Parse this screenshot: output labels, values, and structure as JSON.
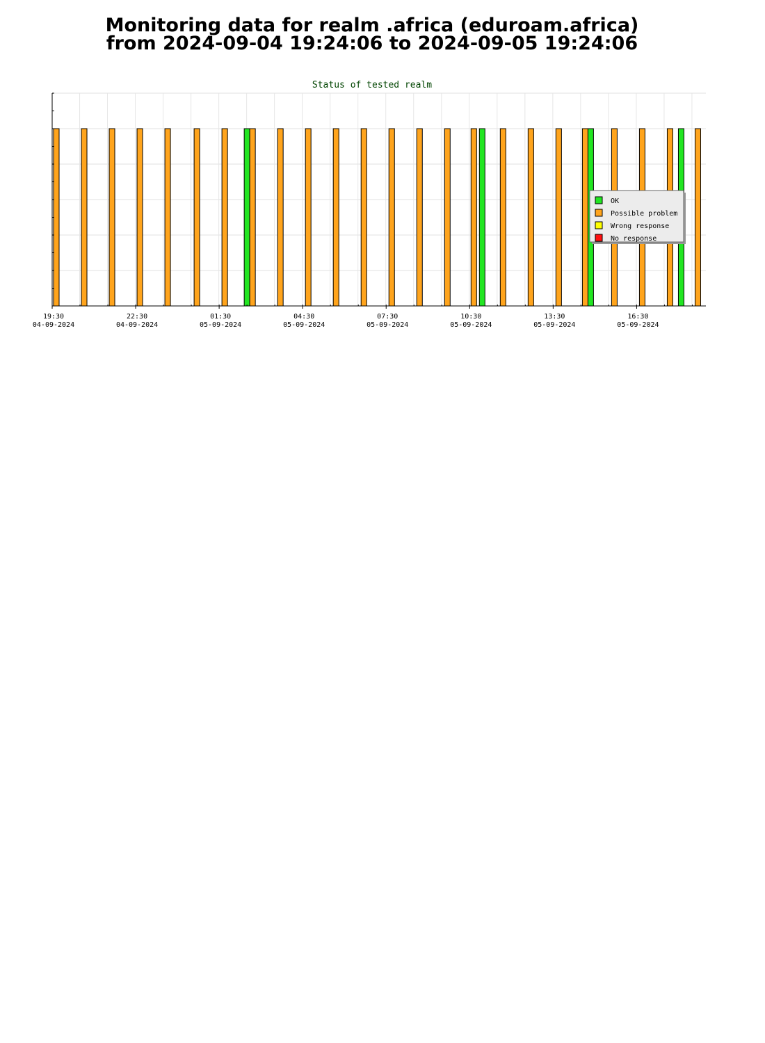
{
  "page": {
    "title_line1": "Monitoring data for realm .africa  (eduroam.africa)",
    "title_line2": "from 2024-09-04 19:24:06 to 2024-09-05 19:24:06"
  },
  "chart_data": {
    "type": "bar",
    "title": "Status of tested realm",
    "xlabel": "",
    "ylabel": "",
    "x_range": [
      "2024-09-04 19:30",
      "2024-09-05 19:24"
    ],
    "x_ticks": [
      {
        "time": "19:30",
        "date": "04-09-2024",
        "hour": 0
      },
      {
        "time": "22:30",
        "date": "04-09-2024",
        "hour": 3
      },
      {
        "time": "01:30",
        "date": "05-09-2024",
        "hour": 6
      },
      {
        "time": "04:30",
        "date": "05-09-2024",
        "hour": 9
      },
      {
        "time": "07:30",
        "date": "05-09-2024",
        "hour": 12
      },
      {
        "time": "10:30",
        "date": "05-09-2024",
        "hour": 15
      },
      {
        "time": "13:30",
        "date": "05-09-2024",
        "hour": 18
      },
      {
        "time": "16:30",
        "date": "05-09-2024",
        "hour": 21
      }
    ],
    "x_max_hour": 23.5,
    "y_levels": 6,
    "bar_value": 5,
    "grid": true,
    "legend_position": "right",
    "series": [
      {
        "name": "OK",
        "color": "#22e622",
        "hours": [
          6.9,
          15.35,
          19.25,
          22.5
        ]
      },
      {
        "name": "Possible problem",
        "color": "#ffa41c",
        "hours": [
          0.05,
          1.05,
          2.05,
          3.05,
          4.05,
          5.1,
          6.1,
          7.1,
          8.1,
          9.1,
          10.1,
          11.1,
          12.1,
          13.1,
          14.1,
          15.05,
          16.1,
          17.1,
          18.1,
          19.05,
          20.1,
          21.1,
          22.1,
          23.1
        ]
      },
      {
        "name": "Wrong response",
        "color": "#ffff00",
        "hours": []
      },
      {
        "name": "No response",
        "color": "#ff1010",
        "hours": []
      }
    ]
  }
}
